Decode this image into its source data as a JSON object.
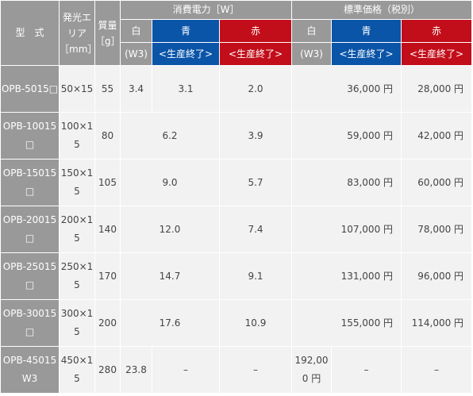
{
  "header": {
    "model": "型　式",
    "emit_area": "発光エリア［mm］",
    "mass": "質量［g］",
    "power": "消費電力［W］",
    "price": "標準価格（税別）",
    "white_a": "白",
    "white_b": "(W3)",
    "blue_a": "青",
    "blue_b": "<生産終了>",
    "red_a": "赤",
    "red_b": "<生産終了>"
  },
  "rows": [
    {
      "model": "OPB-5015□",
      "area": "50×15",
      "mass": "55",
      "pw_white": "3.4",
      "pw_blue": "3.1",
      "pw_red": "2.0",
      "price_wb": "36,000 円",
      "price_red": "28,000 円"
    },
    {
      "model": "OPB-10015□",
      "area": "100×15",
      "mass": "80",
      "pw_wb": "6.2",
      "pw_red": "3.9",
      "price_wb": "59,000 円",
      "price_red": "42,000 円"
    },
    {
      "model": "OPB-15015□",
      "area": "150×15",
      "mass": "105",
      "pw_wb": "9.0",
      "pw_red": "5.7",
      "price_wb": "83,000 円",
      "price_red": "60,000 円"
    },
    {
      "model": "OPB-20015□",
      "area": "200×15",
      "mass": "140",
      "pw_wb": "12.0",
      "pw_red": "7.4",
      "price_wb": "107,000 円",
      "price_red": "78,000 円"
    },
    {
      "model": "OPB-25015□",
      "area": "250×15",
      "mass": "170",
      "pw_wb": "14.7",
      "pw_red": "9.1",
      "price_wb": "131,000 円",
      "price_red": "96,000 円"
    },
    {
      "model": "OPB-30015□",
      "area": "300×15",
      "mass": "200",
      "pw_wb": "17.6",
      "pw_red": "10.9",
      "price_wb": "155,000 円",
      "price_red": "114,000 円"
    },
    {
      "model": "OPB-45015W3",
      "area": "450×15",
      "mass": "280",
      "pw_white": "23.8",
      "pw_blue": "–",
      "pw_red": "–",
      "price_white": "192,000 円",
      "price_blue": "–",
      "price_red": "–"
    }
  ],
  "colors": {
    "header_gray": "#999999",
    "blue": "#0b55a8",
    "red": "#c20e1a",
    "cell_bg": "#f2f2f2"
  }
}
